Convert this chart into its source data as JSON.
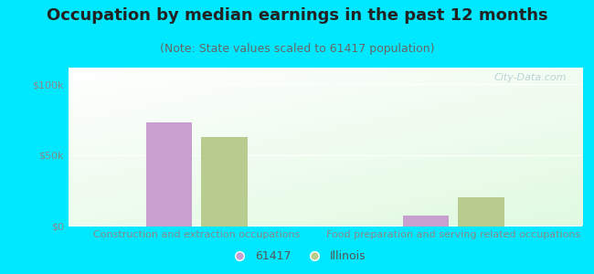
{
  "title": "Occupation by median earnings in the past 12 months",
  "subtitle": "(Note: State values scaled to 61417 population)",
  "background_outer": "#00e8ff",
  "categories": [
    "Construction and extraction occupations",
    "Food preparation and serving related occupations"
  ],
  "values_61417": [
    73000,
    7500
  ],
  "values_illinois": [
    63000,
    20000
  ],
  "color_61417": "#c8a0d0",
  "color_illinois": "#b8cc90",
  "ylim": [
    0,
    112000
  ],
  "yticks": [
    0,
    50000,
    100000
  ],
  "ytick_labels": [
    "$0",
    "$50k",
    "$100k"
  ],
  "legend_label_1": "61417",
  "legend_label_2": "Illinois",
  "watermark": "City-Data.com",
  "title_fontsize": 13,
  "subtitle_fontsize": 9,
  "tick_fontsize": 8,
  "xlabel_fontsize": 8
}
